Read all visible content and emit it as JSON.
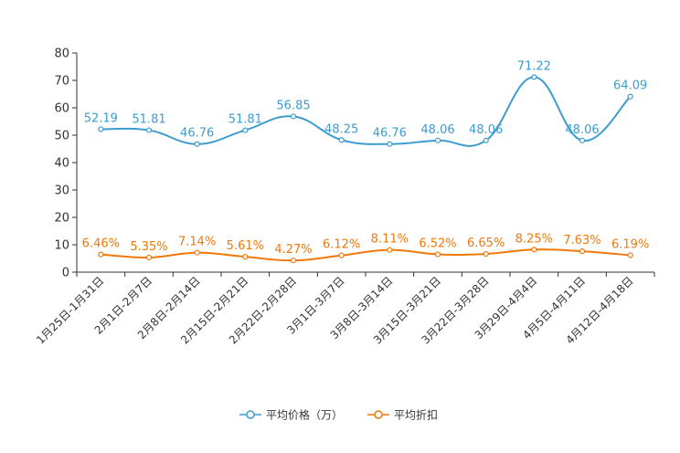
{
  "chart_data": {
    "type": "line",
    "title": "",
    "xlabel": "",
    "ylabel": "",
    "ylim": [
      0,
      80
    ],
    "yticks": [
      "0",
      "10",
      "20",
      "30",
      "40",
      "50",
      "60",
      "70",
      "80"
    ],
    "categories": [
      "1月25日-1月31日",
      "2月1日-2月7日",
      "2月8日-2月14日",
      "2月15日-2月21日",
      "2月22日-2月28日",
      "3月1日-3月7日",
      "3月8日-3月14日",
      "3月15日-3月21日",
      "3月22日-3月28日",
      "3月29日-4月4日",
      "4月5日-4月11日",
      "4月12日-4月18日"
    ],
    "series": [
      {
        "name": "平均价格（万）",
        "color": "#3d9ccf",
        "values": [
          52.19,
          51.81,
          46.76,
          51.81,
          56.85,
          48.25,
          46.76,
          48.06,
          48.06,
          71.22,
          48.06,
          64.09
        ],
        "labels": [
          "52.19",
          "51.81",
          "46.76",
          "51.81",
          "56.85",
          "48.25",
          "46.76",
          "48.06",
          "48.06",
          "71.22",
          "48.06",
          "64.09"
        ]
      },
      {
        "name": "平均折扣",
        "color": "#f0780a",
        "values": [
          6.46,
          5.35,
          7.14,
          5.61,
          4.27,
          6.12,
          8.11,
          6.52,
          6.65,
          8.25,
          7.63,
          6.19
        ],
        "labels": [
          "6.46%",
          "5.35%",
          "7.14%",
          "5.61%",
          "4.27%",
          "6.12%",
          "8.11%",
          "6.52%",
          "6.65%",
          "8.25%",
          "7.63%",
          "6.19%"
        ]
      }
    ],
    "legend_position": "bottom-center"
  }
}
